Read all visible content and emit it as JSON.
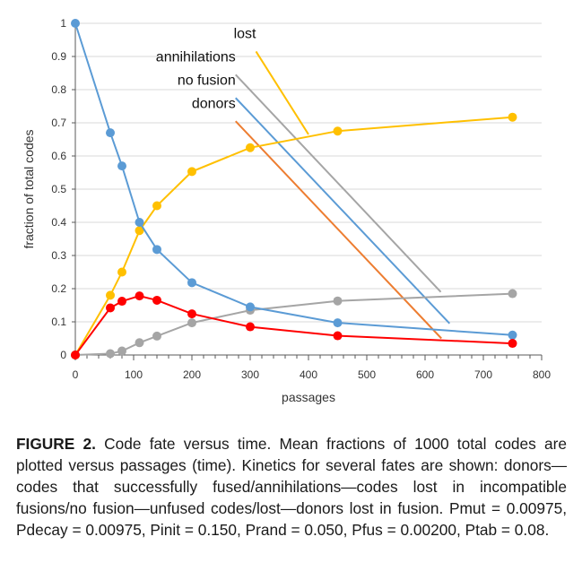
{
  "chart_data": {
    "type": "line",
    "xlabel": "passages",
    "ylabel": "fraction of total codes",
    "xlim": [
      0,
      800
    ],
    "ylim": [
      0,
      1
    ],
    "xticks": [
      "0",
      "100",
      "200",
      "300",
      "400",
      "500",
      "600",
      "700",
      "800"
    ],
    "yticks": [
      "0",
      "0.1",
      "0.2",
      "0.3",
      "0.4",
      "0.5",
      "0.6",
      "0.7",
      "0.8",
      "0.9",
      "1"
    ],
    "grid": "horizontal",
    "series": [
      {
        "name": "lost",
        "color": "#FFC000",
        "points": [
          [
            0,
            0
          ],
          [
            60,
            0.18
          ],
          [
            80,
            0.25
          ],
          [
            110,
            0.375
          ],
          [
            140,
            0.45
          ],
          [
            200,
            0.553
          ],
          [
            300,
            0.625
          ],
          [
            450,
            0.675
          ],
          [
            750,
            0.717
          ]
        ]
      },
      {
        "name": "annihilations",
        "color": "#A5A5A5",
        "points": [
          [
            0,
            0
          ],
          [
            60,
            0.004
          ],
          [
            80,
            0.012
          ],
          [
            110,
            0.037
          ],
          [
            140,
            0.057
          ],
          [
            200,
            0.097
          ],
          [
            300,
            0.135
          ],
          [
            450,
            0.163
          ],
          [
            750,
            0.185
          ]
        ]
      },
      {
        "name": "no fusion",
        "color": "#5B9BD5",
        "points": [
          [
            0,
            1
          ],
          [
            60,
            0.67
          ],
          [
            80,
            0.57
          ],
          [
            110,
            0.4
          ],
          [
            140,
            0.318
          ],
          [
            200,
            0.218
          ],
          [
            300,
            0.145
          ],
          [
            450,
            0.097
          ],
          [
            750,
            0.06
          ]
        ]
      },
      {
        "name": "donors",
        "color": "#FF0000",
        "points": [
          [
            0,
            0
          ],
          [
            60,
            0.142
          ],
          [
            80,
            0.162
          ],
          [
            110,
            0.178
          ],
          [
            140,
            0.165
          ],
          [
            200,
            0.124
          ],
          [
            300,
            0.085
          ],
          [
            450,
            0.058
          ],
          [
            750,
            0.035
          ]
        ]
      }
    ],
    "annotations": [
      {
        "text": "lost",
        "color": "#FFC000",
        "label_at": [
          310,
          0.955
        ],
        "line_from": [
          310,
          0.915
        ],
        "line_to": [
          400,
          0.665
        ]
      },
      {
        "text": "annihilations",
        "color": "#A5A5A5",
        "label_at": [
          275,
          0.885
        ],
        "line_from": [
          275,
          0.845
        ],
        "line_to": [
          627,
          0.19
        ]
      },
      {
        "text": "no fusion",
        "color": "#5B9BD5",
        "label_at": [
          275,
          0.815
        ],
        "line_from": [
          275,
          0.775
        ],
        "line_to": [
          642,
          0.095
        ]
      },
      {
        "text": "donors",
        "color": "#ED7D31",
        "label_at": [
          275,
          0.745
        ],
        "line_from": [
          275,
          0.705
        ],
        "line_to": [
          628,
          0.05
        ]
      }
    ]
  },
  "caption": {
    "label": "FIGURE 2.",
    "text": "Code fate versus time. Mean fractions of 1000 total codes are plotted versus passages (time). Kinetics for several fates are shown: donors—codes that successfully fused/annihilations—codes lost in incompatible fusions/no fusion—unfused codes/lost—donors lost in fusion. Pmut = 0.00975, Pdecay = 0.00975, Pinit = 0.150, Prand = 0.050, Pfus = 0.00200, Ptab = 0.08."
  }
}
